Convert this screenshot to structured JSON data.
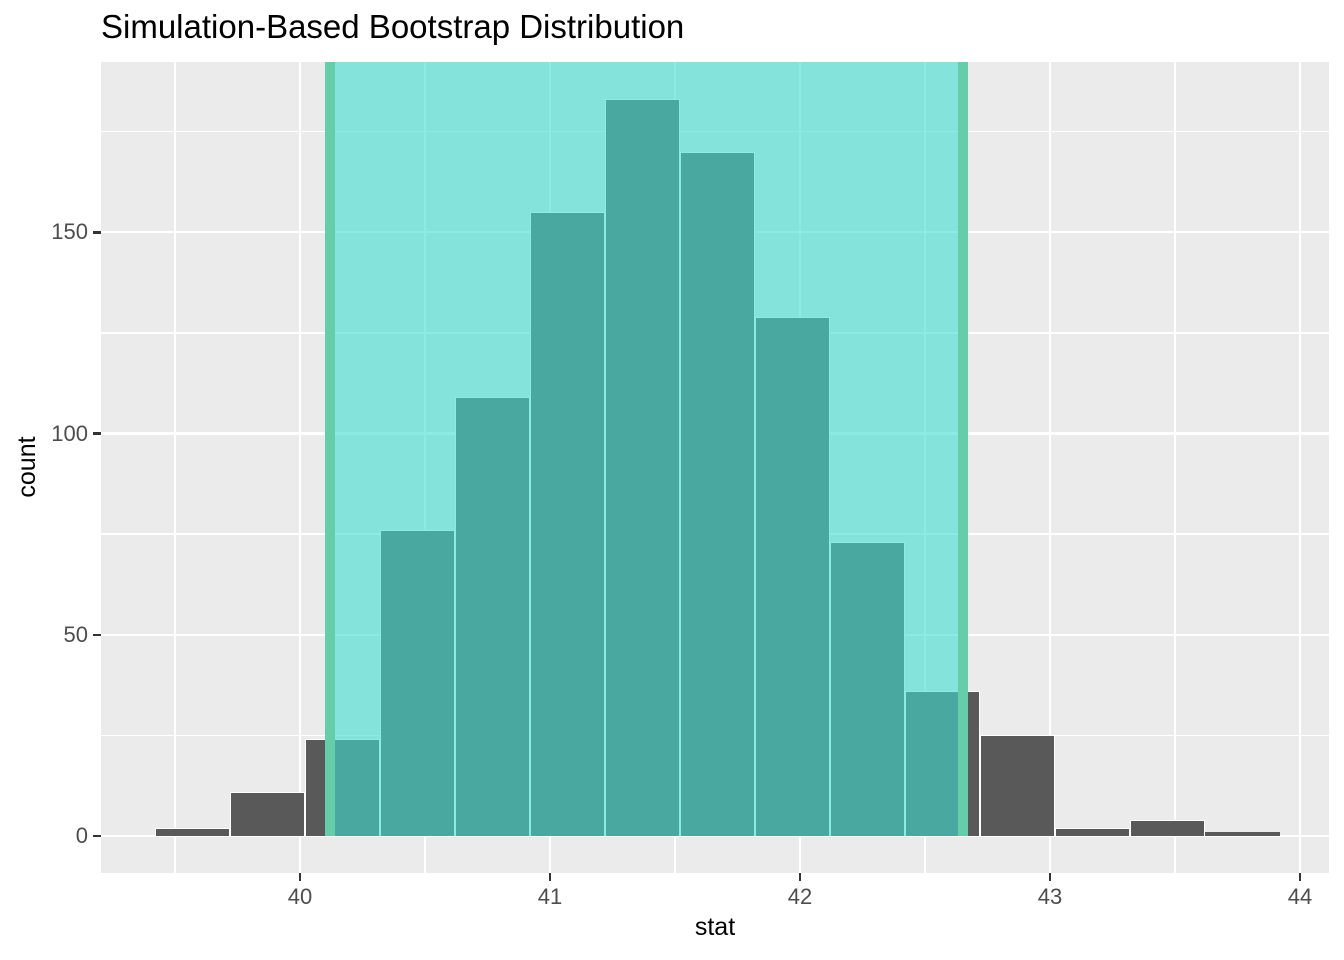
{
  "title": "Simulation-Based Bootstrap Distribution",
  "chart_data": {
    "type": "bar",
    "subtype": "histogram",
    "title": "Simulation-Based Bootstrap Distribution",
    "xlabel": "stat",
    "ylabel": "count",
    "grid": "on",
    "legend": "none",
    "xlim": [
      39.204,
      44.116
    ],
    "ylim": [
      -9.19,
      192.3
    ],
    "x_ticks": [
      40,
      41,
      42,
      43,
      44
    ],
    "x_tick_labels": [
      "40",
      "41",
      "42",
      "43",
      "44"
    ],
    "x_minor_ticks": [
      39.5,
      40.5,
      41.5,
      42.5,
      43.5
    ],
    "y_ticks": [
      0,
      50,
      100,
      150
    ],
    "y_tick_labels": [
      "0",
      "50",
      "100",
      "150"
    ],
    "y_minor_ticks": [
      25,
      75,
      125,
      175
    ],
    "bin_start": 39.42,
    "bin_width": 0.3,
    "counts": [
      2,
      11,
      24,
      76,
      109,
      155,
      183,
      170,
      129,
      73,
      36,
      25,
      2,
      4,
      1
    ],
    "total_replicates": 1000,
    "confidence_interval": {
      "lower": 40.12,
      "upper": 42.65
    },
    "colors": {
      "bar_fill": "#595959",
      "bar_stroke": "#FFFFFF",
      "panel_bg": "#EBEBEB",
      "gridline": "#FFFFFF",
      "shade_fill_rgba": "rgba(64,224,208,0.6)",
      "endpoint_line": "#66CDAA",
      "tick_mark": "#333333",
      "tick_label": "#4D4D4D",
      "title_text": "#000000"
    }
  }
}
